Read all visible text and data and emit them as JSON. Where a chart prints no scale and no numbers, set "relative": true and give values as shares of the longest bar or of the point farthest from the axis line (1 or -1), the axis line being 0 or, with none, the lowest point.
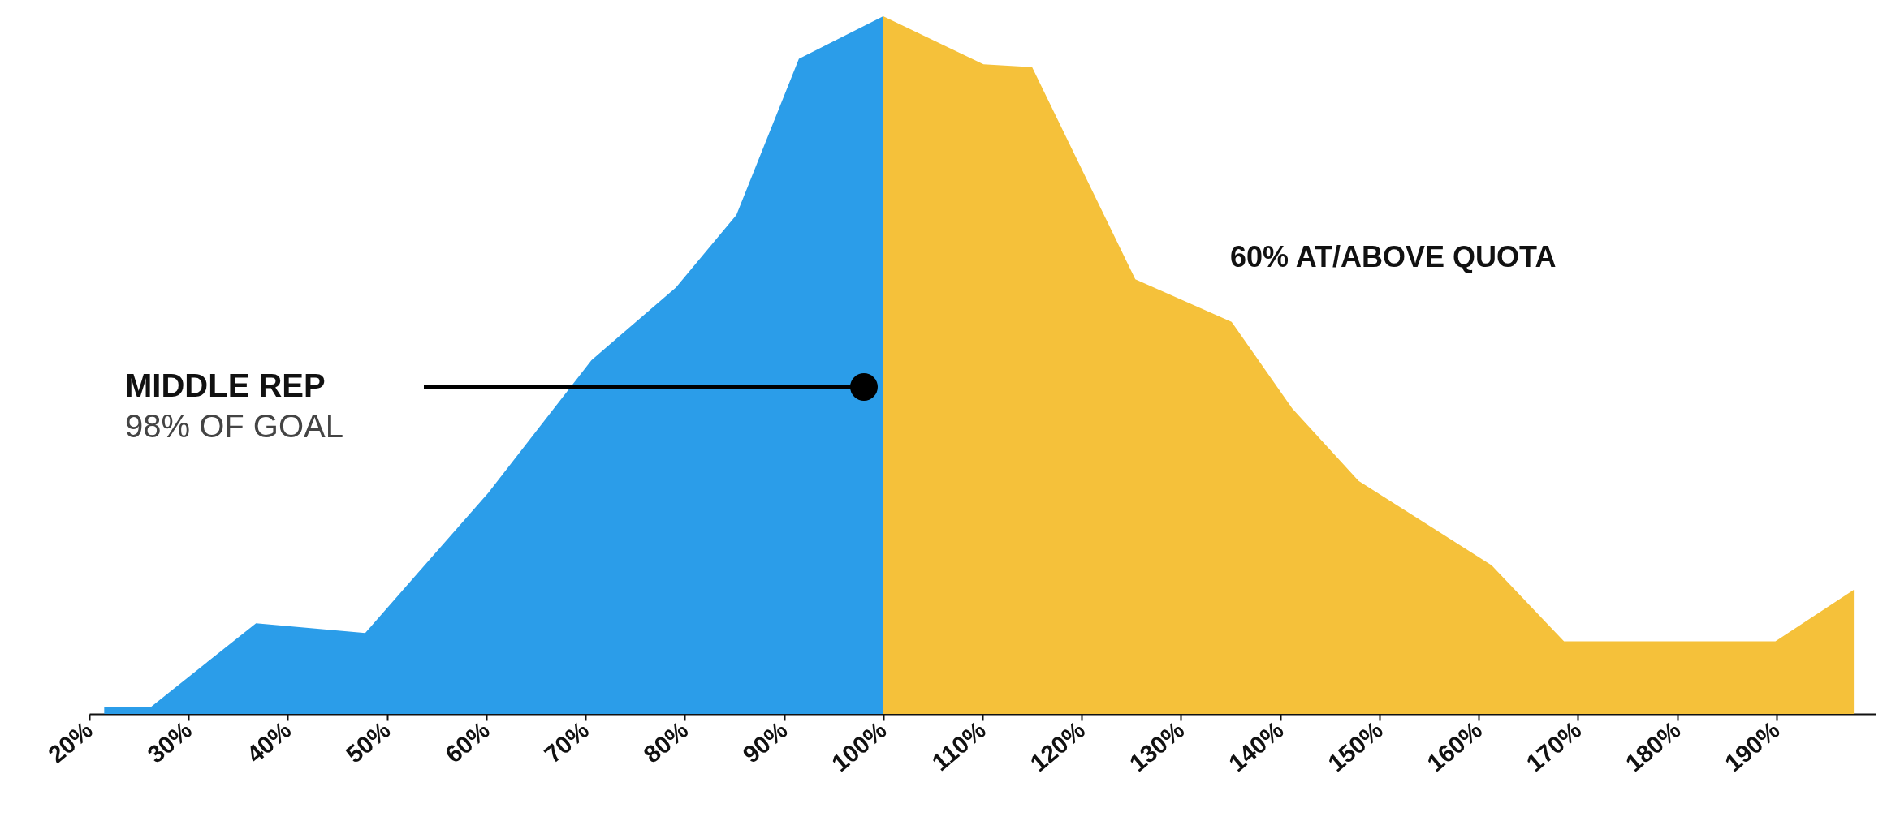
{
  "chart_data": {
    "type": "area",
    "relative": true,
    "xlim": [
      20,
      200
    ],
    "xticks": [
      {
        "value": 20,
        "label": "20%"
      },
      {
        "value": 30,
        "label": "30%"
      },
      {
        "value": 40,
        "label": "40%"
      },
      {
        "value": 50,
        "label": "50%"
      },
      {
        "value": 60,
        "label": "60%"
      },
      {
        "value": 70,
        "label": "70%"
      },
      {
        "value": 80,
        "label": "80%"
      },
      {
        "value": 90,
        "label": "90%"
      },
      {
        "value": 100,
        "label": "100%"
      },
      {
        "value": 110,
        "label": "110%"
      },
      {
        "value": 120,
        "label": "120%"
      },
      {
        "value": 130,
        "label": "130%"
      },
      {
        "value": 140,
        "label": "140%"
      },
      {
        "value": 150,
        "label": "150%"
      },
      {
        "value": 160,
        "label": "160%"
      },
      {
        "value": 170,
        "label": "170%"
      },
      {
        "value": 180,
        "label": "180%"
      },
      {
        "value": 190,
        "label": "190%"
      }
    ],
    "series": [
      {
        "color": "#2b9de9",
        "x": [
          21.5,
          26.2,
          36.8,
          47.8,
          60.2,
          70.6,
          79.1,
          85.2,
          91.5,
          100
        ],
        "values": [
          0.01,
          0.01,
          0.13,
          0.116,
          0.317,
          0.507,
          0.611,
          0.715,
          0.939,
          1
        ]
      },
      {
        "color": "#f5c13a",
        "x": [
          100,
          110.1,
          115,
          125.4,
          135.1,
          141.2,
          147.9,
          161.3,
          168.6,
          189.9,
          197.8
        ],
        "values": [
          1,
          0.931,
          0.927,
          0.623,
          0.562,
          0.438,
          0.334,
          0.213,
          0.104,
          0.104,
          0.178
        ]
      }
    ],
    "annotations": [
      "MIDDLE REP\n98% OF GOAL",
      "60% AT/ABOVE QUOTA"
    ],
    "grid": false
  }
}
